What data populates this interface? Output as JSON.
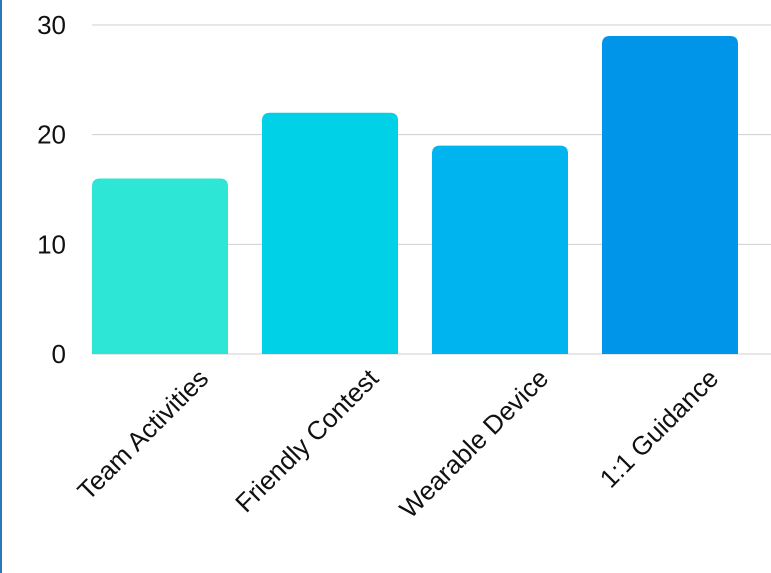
{
  "chart_data": {
    "type": "bar",
    "title": "",
    "xlabel": "",
    "ylabel": "",
    "categories": [
      "Team Activities",
      "Friendly Contest",
      "Wearable Device",
      "1:1 Guidance"
    ],
    "values": [
      16,
      22,
      19,
      29
    ],
    "ylim": [
      0,
      30
    ],
    "yticks": [
      "0",
      "10",
      "20",
      "30"
    ],
    "grid": true,
    "legend": "none",
    "colors": [
      "#2ee6d6",
      "#00d1e6",
      "#00b4f0",
      "#0095e8"
    ],
    "gridline_color": "#cfcfcf"
  }
}
